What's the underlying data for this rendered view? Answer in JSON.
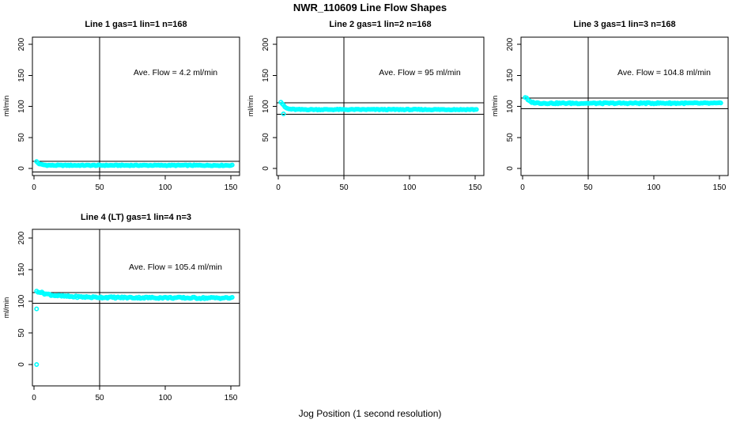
{
  "page": {
    "title": "NWR_110609  Line Flow Shapes",
    "xlabel": "Jog Position (1 second resolution)"
  },
  "colors": {
    "points": "#00ffff",
    "axis": "#000000",
    "background": "#ffffff"
  },
  "chart_data": [
    {
      "type": "scatter",
      "title": "Line 1 gas=1 lin=1 n=168",
      "ylabel": "ml/min",
      "annotation": "Ave. Flow =  4.2  ml/min",
      "ave_flow_ml_min": 4.2,
      "n": 168,
      "x_ticks": [
        0,
        50,
        100,
        150
      ],
      "y_ticks": [
        0,
        50,
        100,
        150,
        200
      ],
      "xlim": [
        -4,
        157
      ],
      "ylim": [
        -12,
        212
      ],
      "vline_x": 50,
      "ref_lines_y": [
        11.5,
        -6
      ],
      "x_data_range": [
        2,
        151
      ],
      "keypoints": [
        [
          2,
          11
        ],
        [
          3,
          9
        ],
        [
          4,
          7.5
        ],
        [
          5,
          6.5
        ],
        [
          7,
          5.8
        ],
        [
          10,
          5.2
        ],
        [
          15,
          5
        ],
        [
          50,
          5
        ],
        [
          100,
          5
        ],
        [
          151,
          5
        ]
      ],
      "noise": 0.7,
      "outliers": []
    },
    {
      "type": "scatter",
      "title": "Line 2 gas=1 lin=2 n=168",
      "ylabel": "ml/min",
      "annotation": "Ave. Flow =  95  ml/min",
      "ave_flow_ml_min": 95,
      "n": 168,
      "x_ticks": [
        0,
        50,
        100,
        150
      ],
      "y_ticks": [
        0,
        50,
        100,
        150,
        200
      ],
      "xlim": [
        -4,
        157
      ],
      "ylim": [
        -12,
        212
      ],
      "vline_x": 50,
      "ref_lines_y": [
        106,
        87.5
      ],
      "x_data_range": [
        2,
        151
      ],
      "keypoints": [
        [
          2,
          107
        ],
        [
          3,
          104.5
        ],
        [
          4,
          101.5
        ],
        [
          5,
          99
        ],
        [
          6,
          97.5
        ],
        [
          8,
          96
        ],
        [
          10,
          95.5
        ],
        [
          15,
          95
        ],
        [
          80,
          95
        ],
        [
          151,
          95
        ]
      ],
      "noise": 0.7,
      "outliers": [
        [
          4,
          88
        ]
      ]
    },
    {
      "type": "scatter",
      "title": "Line 3 gas=1 lin=3 n=168",
      "ylabel": "ml/min",
      "annotation": "Ave. Flow =  104.8  ml/min",
      "ave_flow_ml_min": 104.8,
      "n": 168,
      "x_ticks": [
        0,
        50,
        100,
        150
      ],
      "y_ticks": [
        0,
        50,
        100,
        150,
        200
      ],
      "xlim": [
        -4,
        157
      ],
      "ylim": [
        -12,
        212
      ],
      "vline_x": 50,
      "ref_lines_y": [
        113.5,
        96
      ],
      "x_data_range": [
        2,
        151
      ],
      "keypoints": [
        [
          2,
          115
        ],
        [
          3,
          113
        ],
        [
          4,
          110.5
        ],
        [
          5,
          108.5
        ],
        [
          6,
          107.5
        ],
        [
          8,
          106.3
        ],
        [
          10,
          105.8
        ],
        [
          15,
          105.2
        ],
        [
          60,
          105
        ],
        [
          100,
          105.3
        ],
        [
          151,
          105
        ]
      ],
      "noise": 1.0,
      "outliers": []
    },
    {
      "type": "scatter",
      "title": "Line 4 (LT) gas=1 lin=4 n=3",
      "ylabel": "ml/min",
      "annotation": "Ave. Flow =  105.4  ml/min",
      "ave_flow_ml_min": 105.4,
      "n": 3,
      "x_ticks": [
        0,
        50,
        100,
        150
      ],
      "y_ticks": [
        0,
        50,
        100,
        150,
        200
      ],
      "xlim": [
        -4,
        157
      ],
      "ylim": [
        -34,
        214
      ],
      "vline_x": 50,
      "ref_lines_y": [
        114,
        97
      ],
      "x_data_range": [
        2,
        151
      ],
      "keypoints": [
        [
          2,
          116
        ],
        [
          4,
          115
        ],
        [
          6,
          113.5
        ],
        [
          8,
          112.3
        ],
        [
          10,
          111.3
        ],
        [
          14,
          109.8
        ],
        [
          20,
          108.3
        ],
        [
          30,
          107.2
        ],
        [
          45,
          106.4
        ],
        [
          60,
          106
        ],
        [
          80,
          105.7
        ],
        [
          100,
          105.6
        ],
        [
          120,
          105.3
        ],
        [
          151,
          105.2
        ]
      ],
      "noise": 1.3,
      "outliers": [
        [
          2,
          88
        ],
        [
          2,
          0
        ]
      ]
    }
  ]
}
